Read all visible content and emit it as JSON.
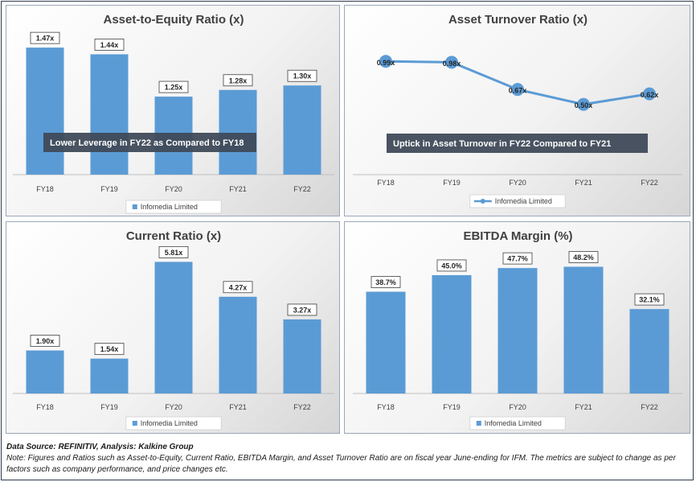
{
  "chart_data": [
    {
      "id": "ae",
      "type": "bar",
      "title": "Asset-to-Equity Ratio (x)",
      "categories": [
        "FY18",
        "FY19",
        "FY20",
        "FY21",
        "FY22"
      ],
      "series": [
        {
          "name": "Infomedia Limited",
          "values": [
            1.47,
            1.44,
            1.25,
            1.28,
            1.3
          ]
        }
      ],
      "data_labels": [
        "1.47x",
        "1.44x",
        "1.25x",
        "1.28x",
        "1.30x"
      ],
      "ylim": [
        0.9,
        1.55
      ],
      "annotation": "Lower Leverage in FY22 as Compared to FY18",
      "legend": "bottom",
      "grid": false
    },
    {
      "id": "at",
      "type": "line",
      "title": "Asset Turnover Ratio (x)",
      "categories": [
        "FY18",
        "FY19",
        "FY20",
        "FY21",
        "FY22"
      ],
      "series": [
        {
          "name": "Infomedia Limited",
          "values": [
            0.99,
            0.98,
            0.67,
            0.5,
            0.62
          ]
        }
      ],
      "data_labels": [
        "0.99x",
        "0.98x",
        "0.67x",
        "0.50x",
        "0.62x"
      ],
      "ylim": [
        -0.3,
        1.35
      ],
      "annotation": "Uptick in Asset Turnover in FY22 Compared to FY21",
      "legend": "bottom",
      "grid": false
    },
    {
      "id": "cr",
      "type": "bar",
      "title": "Current Ratio (x)",
      "categories": [
        "FY18",
        "FY19",
        "FY20",
        "FY21",
        "FY22"
      ],
      "series": [
        {
          "name": "Infomedia Limited",
          "values": [
            1.9,
            1.54,
            5.81,
            4.27,
            3.27
          ]
        }
      ],
      "data_labels": [
        "1.90x",
        "1.54x",
        "5.81x",
        "4.27x",
        "3.27x"
      ],
      "ylim": [
        0,
        6.5
      ],
      "legend": "bottom",
      "grid": false
    },
    {
      "id": "em",
      "type": "bar",
      "title": "EBITDA Margin (%)",
      "categories": [
        "FY18",
        "FY19",
        "FY20",
        "FY21",
        "FY22"
      ],
      "series": [
        {
          "name": "Infomedia Limited",
          "values": [
            38.7,
            45.0,
            47.7,
            48.2,
            32.1
          ]
        }
      ],
      "data_labels": [
        "38.7%",
        "45.0%",
        "47.7%",
        "48.2%",
        "32.1%"
      ],
      "ylim": [
        0,
        56
      ],
      "legend": "bottom",
      "grid": false
    }
  ],
  "colors": {
    "bar": "#5b9bd5",
    "line": "#5b9bd5",
    "banner": "#3f4a59"
  },
  "footer": {
    "source": "Data Source: REFINITIV, Analysis: Kalkine Group",
    "note": "Note: Figures and Ratios such as Asset-to-Equity, Current Ratio, EBITDA Margin, and Asset Turnover Ratio are on fiscal year June-ending for IFM. The metrics are subject to change as per factors such as company performance, and price changes etc."
  }
}
